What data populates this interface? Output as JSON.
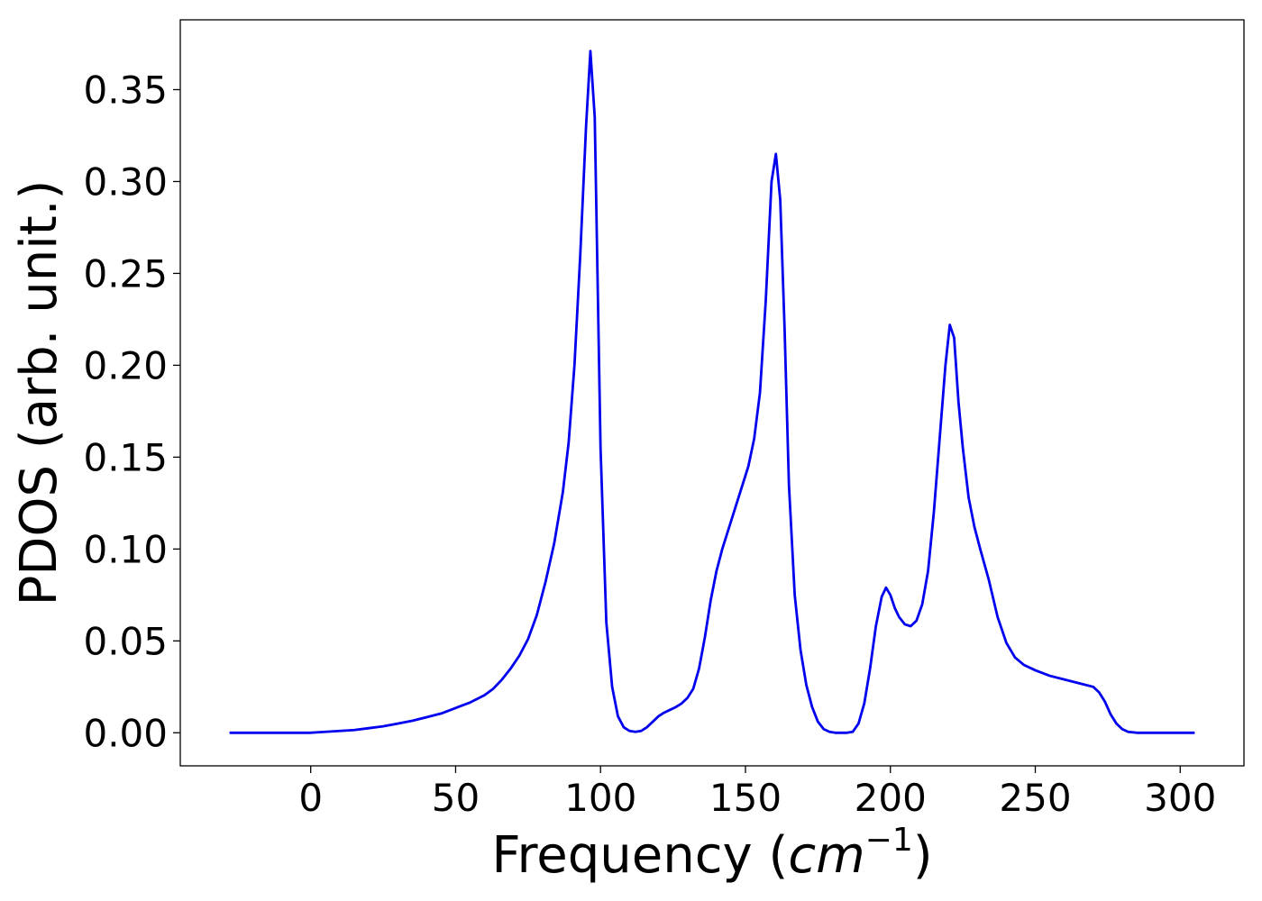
{
  "chart_data": {
    "type": "line",
    "title": "",
    "xlabel_main": "Frequency (",
    "xlabel_unit": "cm",
    "xlabel_exp": "−1",
    "xlabel_close": ")",
    "ylabel": "PDOS (arb. unit.)",
    "xlim": [
      -45,
      322
    ],
    "ylim": [
      -0.018,
      0.388
    ],
    "xticks": [
      0,
      50,
      100,
      150,
      200,
      250,
      300
    ],
    "xtick_labels": [
      "0",
      "50",
      "100",
      "150",
      "200",
      "250",
      "300"
    ],
    "yticks": [
      0.0,
      0.05,
      0.1,
      0.15,
      0.2,
      0.25,
      0.3,
      0.35
    ],
    "ytick_labels": [
      "0.00",
      "0.05",
      "0.10",
      "0.15",
      "0.20",
      "0.25",
      "0.30",
      "0.35"
    ],
    "grid": false,
    "legend": "none",
    "colors": {
      "line": "#0000ee",
      "axes": "#000000",
      "background": "#ffffff"
    },
    "series": [
      {
        "x": [
          -28,
          -10,
          0,
          5,
          10,
          15,
          20,
          25,
          30,
          35,
          40,
          45,
          50,
          55,
          60,
          63,
          66,
          69,
          72,
          75,
          78,
          81,
          84,
          87,
          89,
          91,
          93,
          95,
          96.5,
          98,
          100,
          102,
          104,
          106,
          108,
          110,
          112,
          114,
          116,
          118,
          120,
          122,
          124,
          126,
          128,
          130,
          132,
          134,
          136,
          138,
          140,
          142,
          145,
          148,
          151,
          153,
          155,
          157,
          159,
          160.5,
          162,
          163.5,
          165,
          167,
          169,
          171,
          173,
          175,
          177,
          179,
          181,
          183,
          185,
          187,
          189,
          191,
          193,
          195,
          197,
          198.5,
          200,
          201.5,
          203,
          205,
          207,
          209,
          211,
          213,
          215,
          217,
          219,
          220.5,
          222,
          223.5,
          225,
          227,
          229,
          231,
          234,
          237,
          240,
          243,
          246,
          250,
          255,
          260,
          265,
          270,
          272,
          274,
          276,
          278,
          280,
          282,
          285,
          290,
          295,
          300,
          305
        ],
        "y": [
          0.0,
          0.0,
          0.0,
          0.0005,
          0.001,
          0.0015,
          0.0025,
          0.0035,
          0.005,
          0.0065,
          0.0085,
          0.0105,
          0.0135,
          0.0165,
          0.0205,
          0.024,
          0.029,
          0.035,
          0.042,
          0.051,
          0.064,
          0.082,
          0.103,
          0.131,
          0.158,
          0.2,
          0.26,
          0.33,
          0.371,
          0.335,
          0.155,
          0.06,
          0.025,
          0.009,
          0.003,
          0.001,
          0.0005,
          0.001,
          0.003,
          0.006,
          0.009,
          0.011,
          0.0125,
          0.014,
          0.016,
          0.019,
          0.024,
          0.035,
          0.052,
          0.072,
          0.088,
          0.1,
          0.115,
          0.13,
          0.145,
          0.16,
          0.185,
          0.235,
          0.3,
          0.315,
          0.29,
          0.22,
          0.135,
          0.075,
          0.045,
          0.026,
          0.014,
          0.006,
          0.002,
          0.0005,
          0.0,
          0.0,
          0.0,
          0.0005,
          0.005,
          0.016,
          0.035,
          0.058,
          0.074,
          0.079,
          0.075,
          0.068,
          0.063,
          0.059,
          0.058,
          0.061,
          0.07,
          0.088,
          0.12,
          0.16,
          0.2,
          0.222,
          0.215,
          0.18,
          0.155,
          0.128,
          0.112,
          0.1,
          0.083,
          0.063,
          0.049,
          0.041,
          0.037,
          0.034,
          0.031,
          0.029,
          0.027,
          0.025,
          0.022,
          0.017,
          0.01,
          0.005,
          0.002,
          0.0005,
          0.0,
          0.0,
          0.0,
          0.0,
          0.0
        ]
      }
    ]
  }
}
